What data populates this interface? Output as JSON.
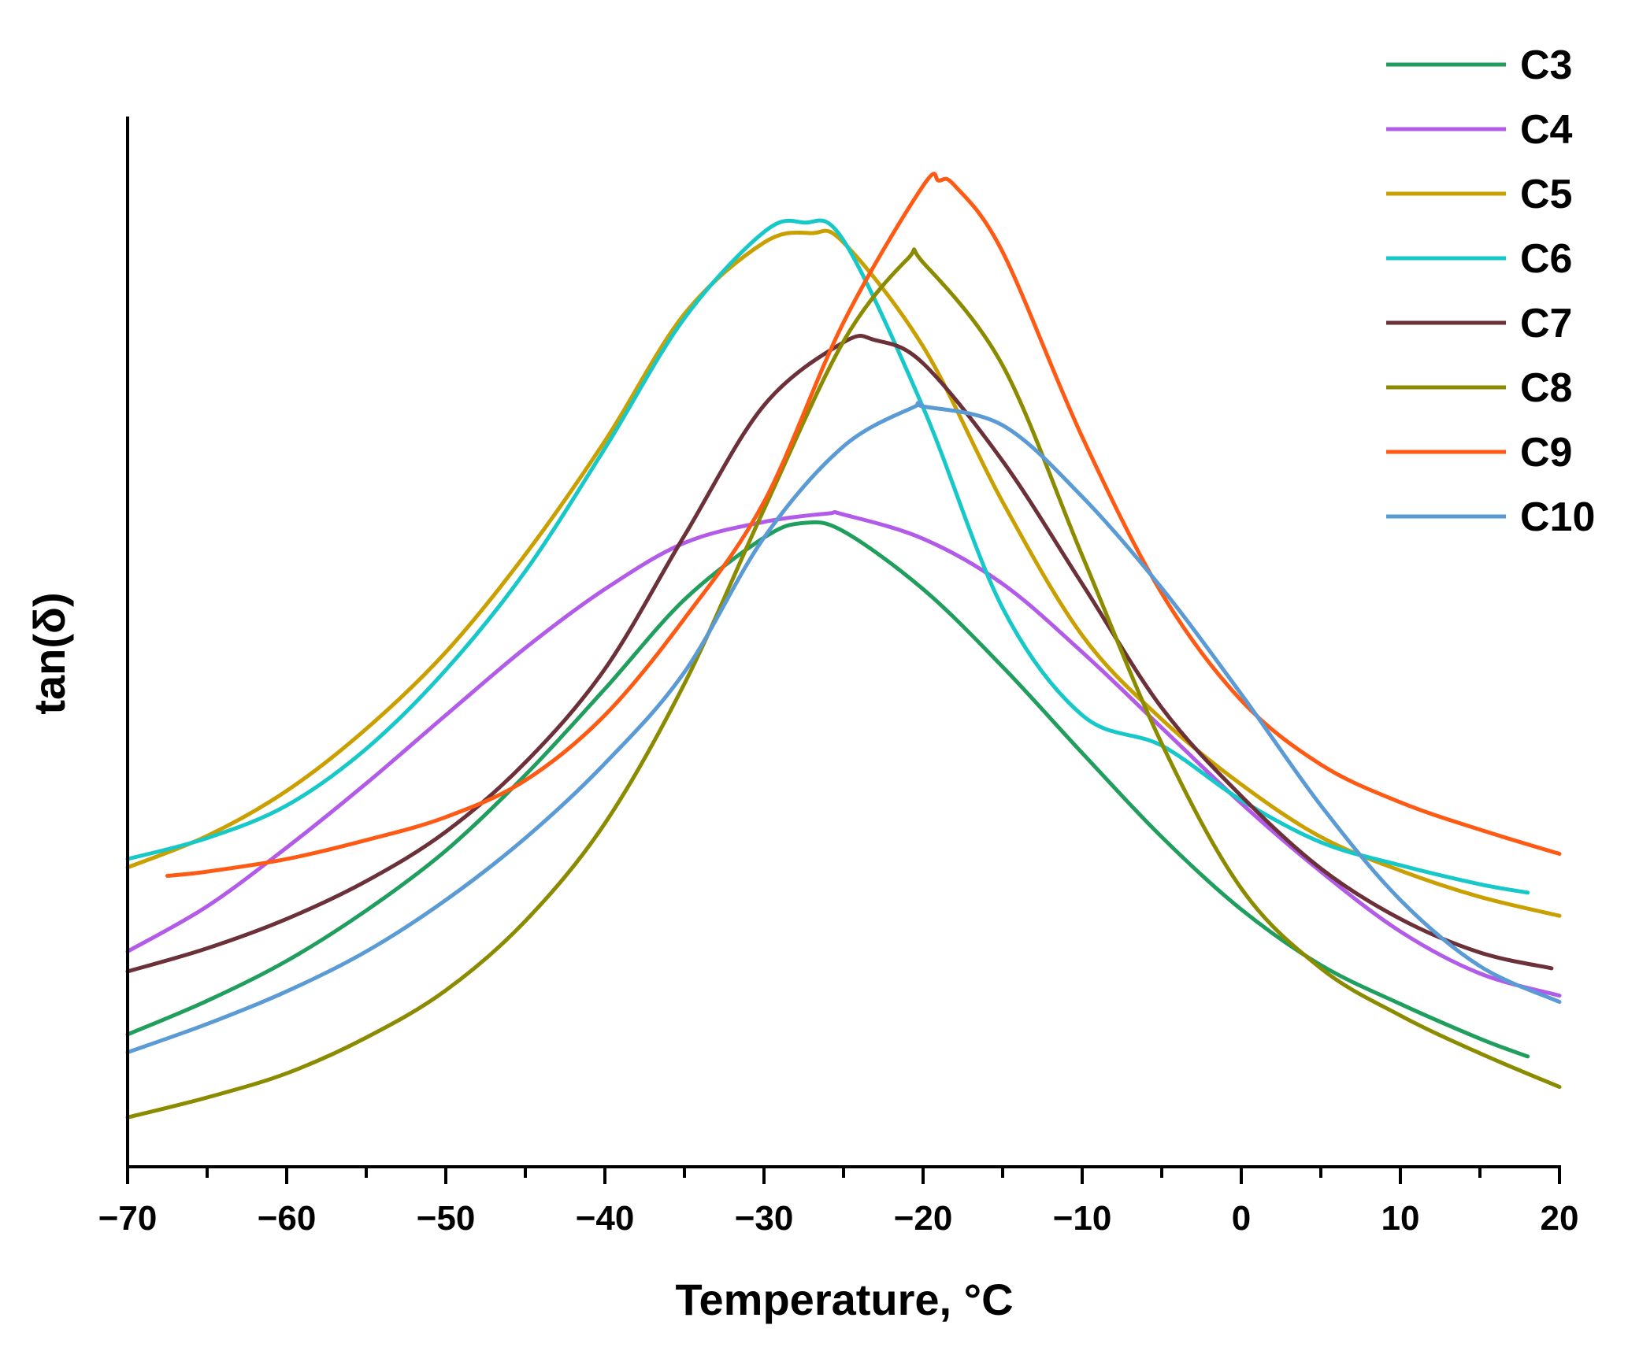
{
  "chart_data": {
    "type": "line",
    "title": "",
    "xlabel": "Temperature, °C",
    "ylabel": "tan(δ)",
    "xlim": [
      -70,
      20
    ],
    "ylim": [
      0,
      1
    ],
    "x_ticks": [
      -70,
      -60,
      -50,
      -40,
      -30,
      -20,
      -10,
      0,
      10,
      20
    ],
    "x_tick_labels": [
      "−70",
      "−60",
      "−50",
      "−40",
      "−30",
      "−20",
      "−10",
      "0",
      "10",
      "20"
    ],
    "y_ticks_shown": false,
    "legend_position": "top-right",
    "series": [
      {
        "name": "C3",
        "color": "#1f9e5e",
        "x": [
          -70,
          -65,
          -60,
          -55,
          -50,
          -45,
          -40,
          -35,
          -30,
          -27.5,
          -25,
          -20,
          -15,
          -10,
          -5,
          0,
          5,
          10,
          15,
          18
        ],
        "y": [
          0.126,
          0.158,
          0.196,
          0.244,
          0.301,
          0.373,
          0.455,
          0.54,
          0.599,
          0.613,
          0.605,
          0.55,
          0.476,
          0.394,
          0.314,
          0.245,
          0.192,
          0.155,
          0.122,
          0.105
        ]
      },
      {
        "name": "C4",
        "color": "#b25be8",
        "x": [
          -70,
          -65,
          -60,
          -55,
          -50,
          -45,
          -40,
          -35,
          -30,
          -26,
          -25,
          -20,
          -15,
          -10,
          -5,
          0,
          5,
          10,
          15,
          20
        ],
        "y": [
          0.205,
          0.248,
          0.304,
          0.365,
          0.43,
          0.494,
          0.55,
          0.594,
          0.614,
          0.622,
          0.621,
          0.598,
          0.555,
          0.49,
          0.418,
          0.346,
          0.281,
          0.224,
          0.184,
          0.163
        ]
      },
      {
        "name": "C5",
        "color": "#c9a000",
        "x": [
          -70,
          -65,
          -60,
          -55,
          -50,
          -45,
          -40,
          -35,
          -30,
          -27,
          -25,
          -20,
          -15,
          -10,
          -5,
          0,
          5,
          10,
          15,
          20
        ],
        "y": [
          0.285,
          0.315,
          0.358,
          0.417,
          0.49,
          0.583,
          0.691,
          0.812,
          0.88,
          0.889,
          0.88,
          0.781,
          0.633,
          0.506,
          0.426,
          0.364,
          0.314,
          0.282,
          0.257,
          0.239
        ]
      },
      {
        "name": "C6",
        "color": "#17c8c8",
        "x": [
          -70,
          -65,
          -60,
          -55,
          -50,
          -45,
          -40,
          -35,
          -30,
          -27.5,
          -25,
          -20,
          -15,
          -10,
          -5,
          0,
          5,
          10,
          15,
          18
        ],
        "y": [
          0.293,
          0.313,
          0.344,
          0.398,
          0.473,
          0.567,
          0.684,
          0.808,
          0.89,
          0.899,
          0.882,
          0.723,
          0.532,
          0.43,
          0.401,
          0.349,
          0.309,
          0.287,
          0.269,
          0.261
        ]
      },
      {
        "name": "C7",
        "color": "#6b3038",
        "x": [
          -70,
          -65,
          -60,
          -55,
          -50,
          -45,
          -40,
          -35,
          -30,
          -25,
          -23,
          -20,
          -15,
          -10,
          -5,
          0,
          5,
          10,
          15,
          19.5
        ],
        "y": [
          0.186,
          0.208,
          0.236,
          0.272,
          0.319,
          0.385,
          0.474,
          0.601,
          0.725,
          0.785,
          0.787,
          0.765,
          0.672,
          0.555,
          0.437,
          0.353,
          0.284,
          0.236,
          0.204,
          0.189
        ]
      },
      {
        "name": "C8",
        "color": "#8b8b00",
        "x": [
          -70,
          -65,
          -60,
          -55,
          -50,
          -45,
          -40,
          -35,
          -30,
          -25,
          -21,
          -20,
          -15,
          -10,
          -5,
          0,
          5,
          10,
          15,
          20
        ],
        "y": [
          0.047,
          0.066,
          0.089,
          0.123,
          0.168,
          0.234,
          0.327,
          0.46,
          0.626,
          0.786,
          0.864,
          0.861,
          0.763,
          0.582,
          0.403,
          0.265,
          0.189,
          0.144,
          0.108,
          0.076
        ]
      },
      {
        "name": "C9",
        "color": "#ff5a14",
        "x": [
          -67.5,
          -65,
          -60,
          -55,
          -50,
          -45,
          -40,
          -35,
          -30,
          -25,
          -20,
          -19,
          -18,
          -15,
          -10,
          -5,
          0,
          5,
          10,
          15,
          20
        ],
        "y": [
          0.277,
          0.281,
          0.293,
          0.311,
          0.333,
          0.368,
          0.43,
          0.522,
          0.633,
          0.804,
          0.934,
          0.939,
          0.934,
          0.871,
          0.695,
          0.546,
          0.444,
          0.383,
          0.347,
          0.321,
          0.298
        ]
      },
      {
        "name": "C10",
        "color": "#5b9bd5",
        "x": [
          -70,
          -65,
          -60,
          -55,
          -50,
          -45,
          -40,
          -35,
          -30,
          -25,
          -20.5,
          -20,
          -15,
          -10,
          -5,
          0,
          5,
          10,
          15,
          20
        ],
        "y": [
          0.109,
          0.136,
          0.167,
          0.205,
          0.254,
          0.313,
          0.384,
          0.471,
          0.599,
          0.686,
          0.724,
          0.724,
          0.706,
          0.638,
          0.551,
          0.45,
          0.344,
          0.254,
          0.191,
          0.157
        ]
      }
    ]
  }
}
